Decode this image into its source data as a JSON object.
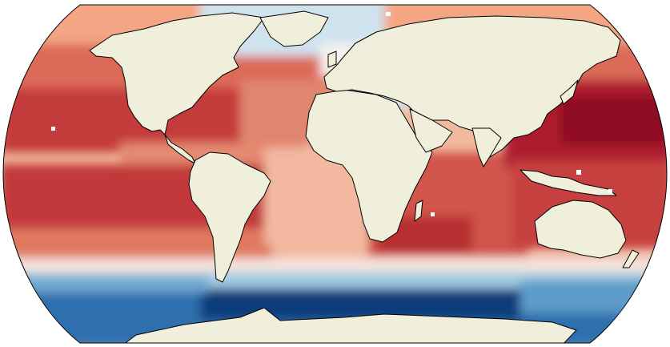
{
  "map": {
    "projection": "robinson",
    "colormap": "RdBu_r",
    "colors": {
      "land": "#efefdb",
      "coastline": "#000000",
      "frame": "#000000",
      "missing": "#ffffff"
    }
  }
}
